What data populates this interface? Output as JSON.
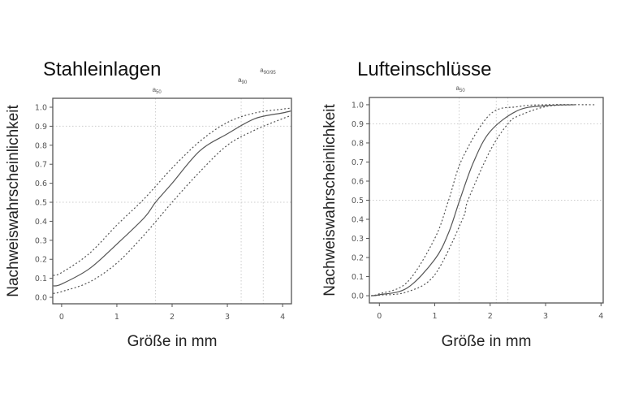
{
  "chart_data": [
    {
      "type": "line",
      "title": "Stahleinlagen",
      "xlabel": "Größe in mm",
      "ylabel": "Nachweiswahrscheinlichkeit",
      "xlim": [
        -0.16,
        4.16
      ],
      "ylim": [
        -0.034,
        1.047
      ],
      "xticks": [
        "0",
        "1",
        "2",
        "3",
        "4"
      ],
      "yticks": [
        "0.0",
        "0.1",
        "0.2",
        "0.3",
        "0.4",
        "0.5",
        "0.6",
        "0.7",
        "0.8",
        "0.9",
        "1.0"
      ],
      "hgrid": [
        0.5,
        0.9
      ],
      "vlines": [
        {
          "x": 1.7,
          "label": "a",
          "sub": "50"
        },
        {
          "x": 3.25,
          "label": "a",
          "sub": "90"
        },
        {
          "x": 3.65,
          "label": "a",
          "sub": "90/95"
        }
      ],
      "series": [
        {
          "style": "solid",
          "x": [
            -0.15,
            0,
            0.5,
            1,
            1.5,
            1.7,
            2,
            2.5,
            3,
            3.5,
            4,
            4.15
          ],
          "y": [
            0.06,
            0.07,
            0.15,
            0.28,
            0.42,
            0.5,
            0.6,
            0.77,
            0.86,
            0.94,
            0.97,
            0.98
          ]
        },
        {
          "style": "dotted",
          "x": [
            -0.15,
            0,
            0.5,
            1,
            1.5,
            2,
            2.5,
            3,
            3.5,
            4,
            4.15
          ],
          "y": [
            0.115,
            0.13,
            0.23,
            0.38,
            0.52,
            0.68,
            0.82,
            0.92,
            0.97,
            0.99,
            0.995
          ]
        },
        {
          "style": "dotted",
          "x": [
            -0.15,
            0,
            0.5,
            1,
            1.5,
            2,
            2.5,
            3,
            3.5,
            4,
            4.15
          ],
          "y": [
            0.02,
            0.03,
            0.08,
            0.18,
            0.33,
            0.5,
            0.66,
            0.8,
            0.88,
            0.94,
            0.955
          ]
        }
      ]
    },
    {
      "type": "line",
      "title": "Lufteinschlüsse",
      "xlabel": "Größe in mm",
      "ylabel": "Nachweiswahrscheinlichkeit",
      "xlim": [
        -0.18,
        4.04
      ],
      "ylim": [
        -0.038,
        1.038
      ],
      "xticks": [
        "0",
        "1",
        "2",
        "3",
        "4"
      ],
      "yticks": [
        "0.0",
        "0.1",
        "0.2",
        "0.3",
        "0.4",
        "0.5",
        "0.6",
        "0.7",
        "0.8",
        "0.9",
        "1.0"
      ],
      "hgrid": [
        0.5,
        0.9
      ],
      "vlines": [
        {
          "x": 1.44,
          "label": "a",
          "sub": "50"
        },
        {
          "x": 2.11
        },
        {
          "x": 2.32
        }
      ],
      "series": [
        {
          "style": "solid",
          "x": [
            -0.15,
            0,
            0.5,
            1,
            1.25,
            1.45,
            1.7,
            2,
            2.5,
            3,
            3.55
          ],
          "y": [
            0.0,
            0.005,
            0.04,
            0.19,
            0.33,
            0.5,
            0.7,
            0.86,
            0.97,
            0.995,
            1.0
          ]
        },
        {
          "style": "dotted",
          "x": [
            -0.15,
            0,
            0.5,
            1,
            1.25,
            1.5,
            2,
            2.5,
            3,
            3.9
          ],
          "y": [
            0.0,
            0.01,
            0.07,
            0.3,
            0.5,
            0.72,
            0.95,
            0.99,
            1.0,
            1.0
          ]
        },
        {
          "style": "dotted",
          "x": [
            -0.15,
            0,
            0.5,
            1,
            1.5,
            1.6,
            2,
            2.32,
            2.5,
            3,
            3.5
          ],
          "y": [
            0.0,
            0.003,
            0.02,
            0.11,
            0.4,
            0.5,
            0.76,
            0.9,
            0.94,
            0.99,
            1.0
          ]
        }
      ]
    }
  ]
}
